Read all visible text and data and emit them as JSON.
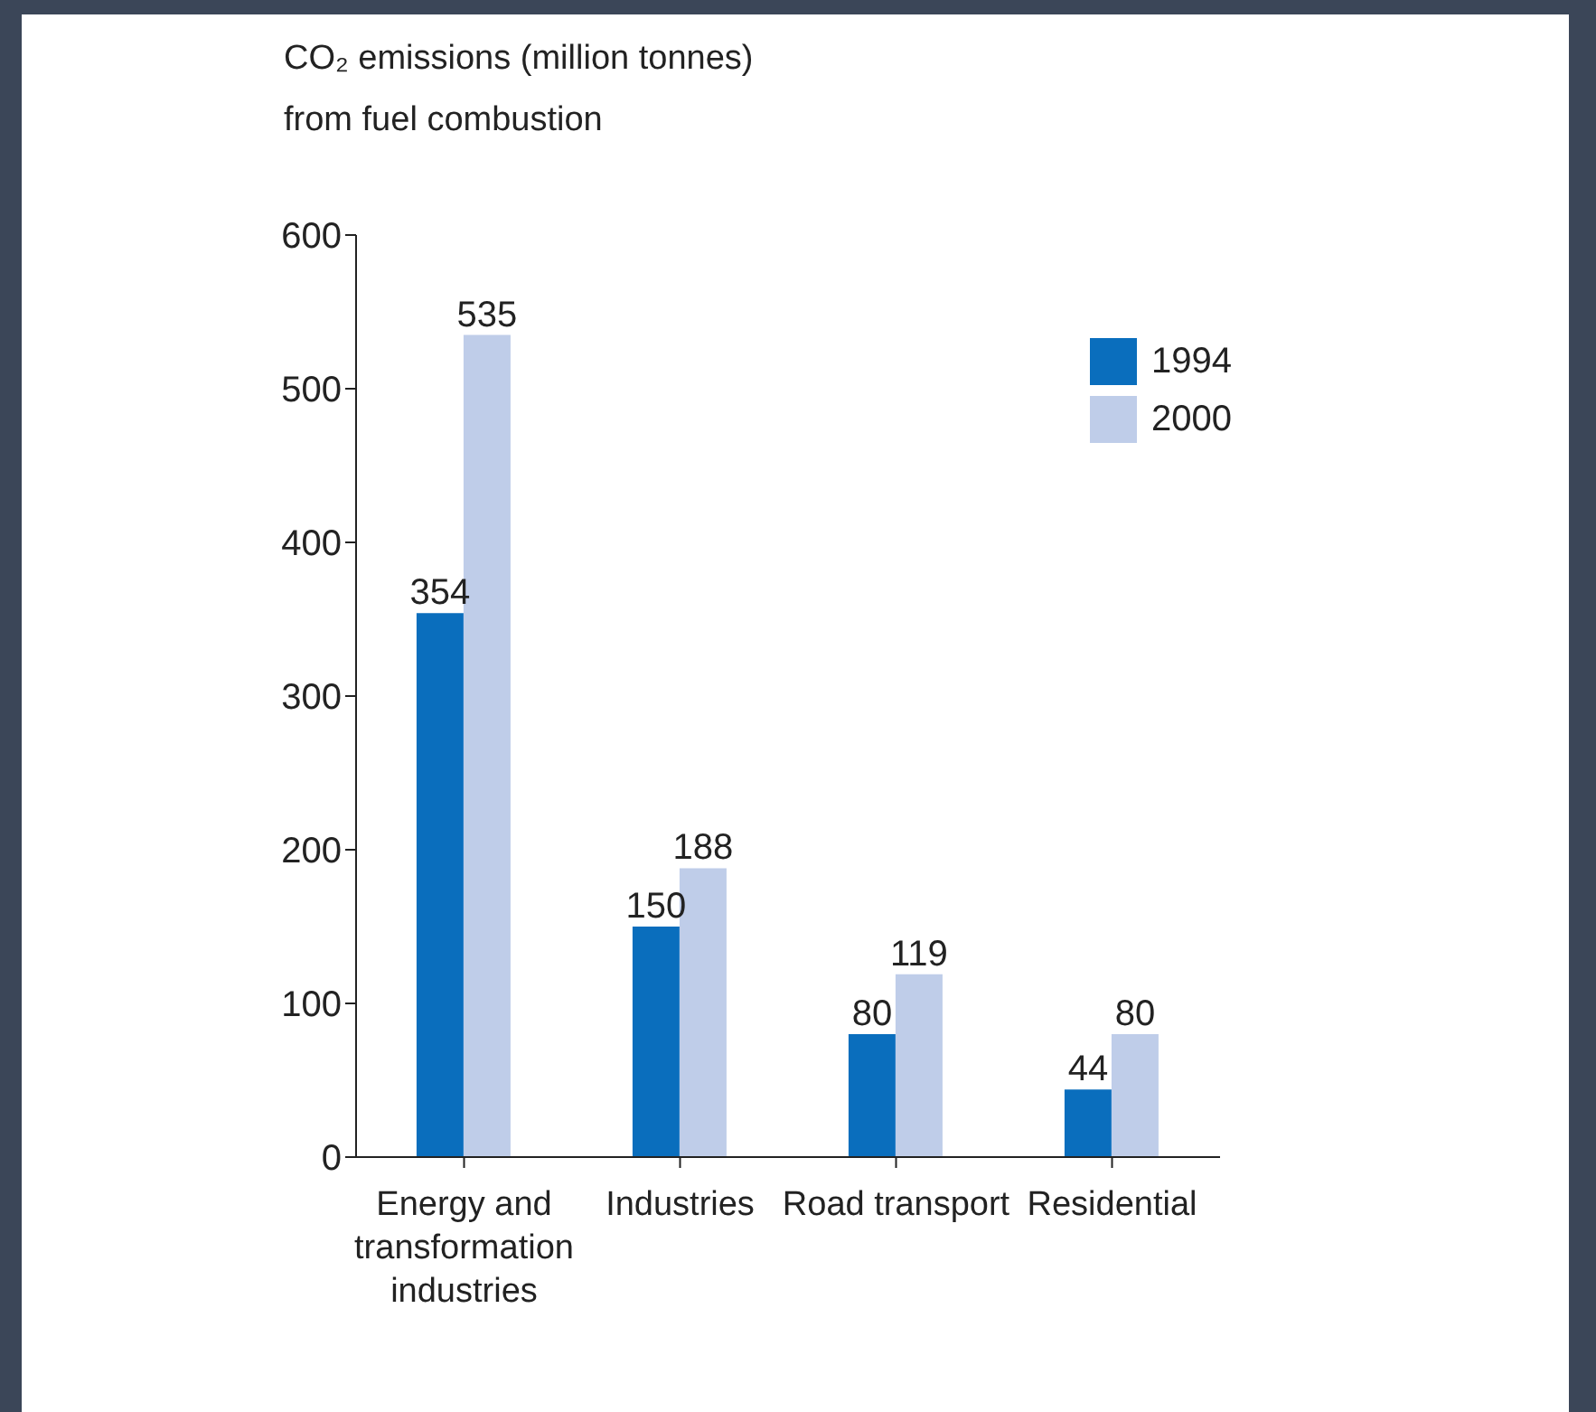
{
  "chart_data": {
    "type": "bar",
    "ylabel": "CO₂ emissions (million tonnes) from fuel combustion",
    "categories": [
      "Energy and transformation industries",
      "Industries",
      "Road transport",
      "Residential"
    ],
    "series": [
      {
        "name": "1994",
        "color": "#0a6ebd",
        "values": [
          354,
          150,
          80,
          44
        ]
      },
      {
        "name": "2000",
        "color": "#bfcde9",
        "values": [
          535,
          188,
          119,
          80
        ]
      }
    ],
    "ylim": [
      0,
      600
    ],
    "yticks": [
      0,
      100,
      200,
      300,
      400,
      500,
      600
    ],
    "grid": false,
    "legend": "top right",
    "data_labels": true
  }
}
